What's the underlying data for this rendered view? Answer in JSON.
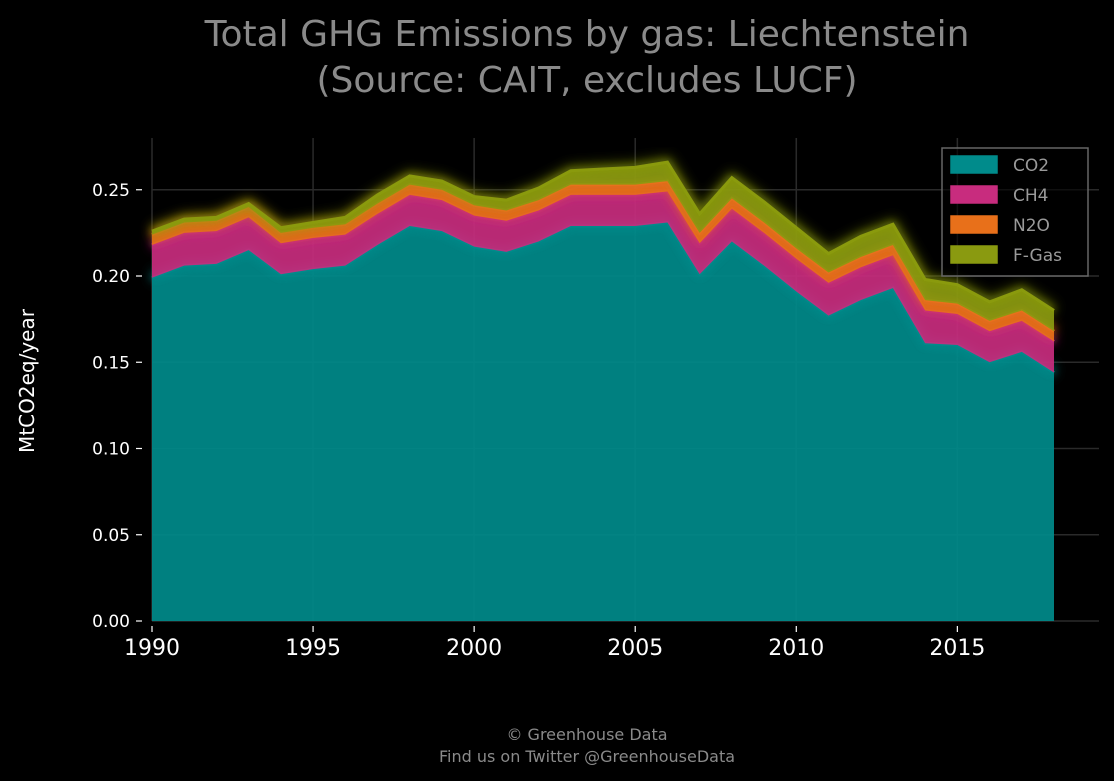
{
  "chart_data": {
    "type": "area",
    "stacked": true,
    "title": "Total GHG Emissions by gas: Liechtenstein",
    "subtitle": "(Source: CAIT, excludes LUCF)",
    "xlabel": "",
    "ylabel": "MtCO2eq/year",
    "xlim": [
      1990,
      2018
    ],
    "ylim": [
      0,
      0.28
    ],
    "x_ticks": [
      1990,
      1995,
      2000,
      2005,
      2010,
      2015
    ],
    "y_ticks": [
      "0.00",
      "0.05",
      "0.10",
      "0.15",
      "0.20",
      "0.25"
    ],
    "grid": true,
    "legend_position": "top-right",
    "x": [
      1990,
      1991,
      1992,
      1993,
      1994,
      1995,
      1996,
      1997,
      1998,
      1999,
      2000,
      2001,
      2002,
      2003,
      2004,
      2005,
      2006,
      2007,
      2008,
      2009,
      2010,
      2011,
      2012,
      2013,
      2014,
      2015,
      2016,
      2017,
      2018
    ],
    "series": [
      {
        "name": "CO2",
        "color": "#008b8b",
        "values": [
          0.199,
          0.206,
          0.207,
          0.215,
          0.201,
          0.204,
          0.206,
          0.218,
          0.229,
          0.226,
          0.217,
          0.214,
          0.22,
          0.229,
          0.229,
          0.229,
          0.231,
          0.201,
          0.22,
          0.206,
          0.191,
          0.177,
          0.186,
          0.193,
          0.161,
          0.16,
          0.15,
          0.156,
          0.144
        ]
      },
      {
        "name": "CH4",
        "color": "#c82c7e",
        "values": [
          0.019,
          0.019,
          0.019,
          0.019,
          0.018,
          0.018,
          0.018,
          0.018,
          0.018,
          0.018,
          0.018,
          0.018,
          0.018,
          0.018,
          0.018,
          0.018,
          0.018,
          0.018,
          0.019,
          0.019,
          0.019,
          0.019,
          0.019,
          0.019,
          0.019,
          0.018,
          0.018,
          0.018,
          0.018
        ]
      },
      {
        "name": "N2O",
        "color": "#e8701a",
        "values": [
          0.006,
          0.006,
          0.006,
          0.006,
          0.006,
          0.006,
          0.006,
          0.006,
          0.006,
          0.006,
          0.006,
          0.006,
          0.006,
          0.006,
          0.006,
          0.006,
          0.006,
          0.006,
          0.006,
          0.006,
          0.006,
          0.006,
          0.006,
          0.006,
          0.006,
          0.006,
          0.006,
          0.006,
          0.006
        ]
      },
      {
        "name": "F-Gas",
        "color": "#8a9a10",
        "values": [
          0.002,
          0.002,
          0.002,
          0.002,
          0.003,
          0.003,
          0.004,
          0.005,
          0.005,
          0.005,
          0.005,
          0.006,
          0.007,
          0.008,
          0.009,
          0.01,
          0.011,
          0.011,
          0.012,
          0.012,
          0.012,
          0.011,
          0.012,
          0.012,
          0.012,
          0.011,
          0.011,
          0.012,
          0.012
        ]
      }
    ]
  },
  "footer": {
    "line1": "© Greenhouse Data",
    "line2": "Find us on Twitter @GreenhouseData"
  }
}
